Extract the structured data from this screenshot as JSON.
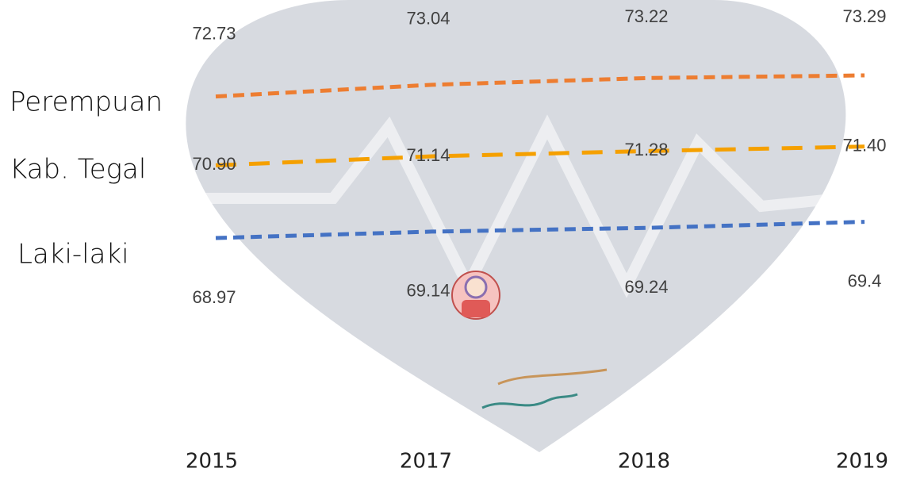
{
  "chart_data": {
    "type": "line",
    "categories": [
      "2015",
      "2017",
      "2018",
      "2019"
    ],
    "series": [
      {
        "name": "Perempuan",
        "color": "#ed7d31",
        "values": [
          72.73,
          73.04,
          73.22,
          73.29
        ],
        "value_labels": [
          "72.73",
          "73.04",
          "73.22",
          "73.29"
        ]
      },
      {
        "name": "Kab. Tegal",
        "color": "#f5a000",
        "values": [
          70.9,
          71.14,
          71.28,
          71.4
        ],
        "value_labels": [
          "70.90",
          "71.14",
          "71.28",
          "71.40"
        ]
      },
      {
        "name": "Laki-laki",
        "color": "#4472c4",
        "values": [
          68.97,
          69.14,
          69.24,
          69.4
        ],
        "value_labels": [
          "68.97",
          "69.14",
          "69.24",
          "69.4"
        ]
      }
    ]
  }
}
